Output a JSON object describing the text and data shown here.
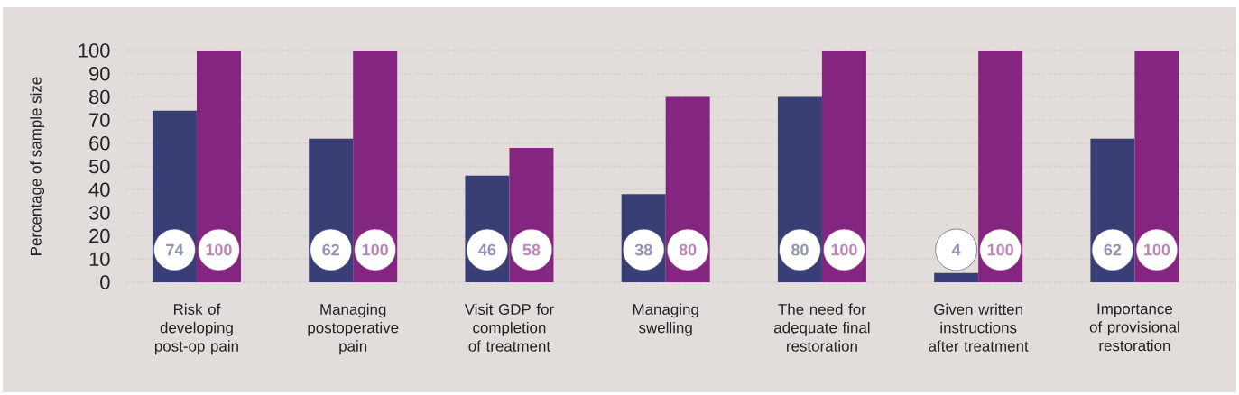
{
  "chart_data": {
    "type": "bar",
    "ylabel": "Percentage of sample size",
    "categories": [
      "Risk of developing post-op pain",
      "Managing postoperative pain",
      "Visit GDP for completion of treatment",
      "Managing swelling",
      "The need for adequate final restoration",
      "Given written instructions after treatment",
      "Importance of provisional restoration"
    ],
    "series": [
      {
        "color": "#393e74",
        "values": [
          74,
          62,
          46,
          38,
          80,
          4,
          62
        ]
      },
      {
        "color": "#84257f",
        "values": [
          100,
          100,
          58,
          80,
          100,
          100,
          100
        ]
      }
    ],
    "ylim": [
      0,
      100
    ],
    "yticks": [
      0,
      10,
      20,
      30,
      40,
      50,
      60,
      70,
      80,
      90,
      100
    ],
    "grid": "y",
    "data_labels": true
  }
}
